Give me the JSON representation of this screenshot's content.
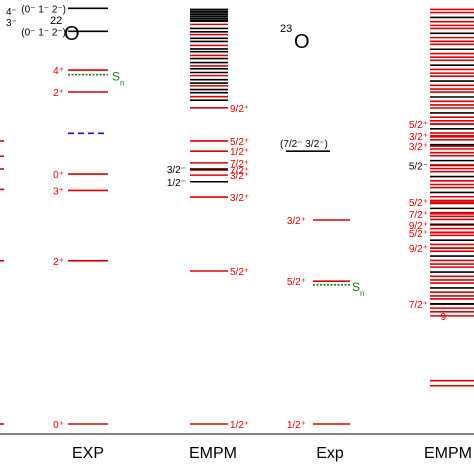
{
  "chart_data": {
    "type": "level-scheme",
    "colors": {
      "positive_parity": "#e00000",
      "negative_parity": "#000000",
      "threshold": "#1a7a1a",
      "neutron_threshold_label": "#1a7a1a",
      "dashed_marker": "#1010d0",
      "axis": "#000000"
    },
    "energy_axis": {
      "ylim": [
        0.0,
        8.0
      ],
      "units": "MeV"
    },
    "columns": [
      {
        "id": "o22-exp",
        "label": "EXP",
        "nucleus": "22O",
        "levels": [
          {
            "E": 0.0,
            "jp": "0⁺",
            "color": "red"
          },
          {
            "E": 3.2,
            "jp": "2⁺",
            "color": "red"
          },
          {
            "E": 4.58,
            "jp": "3⁺",
            "color": "red"
          },
          {
            "E": 4.9,
            "jp": "0⁺",
            "color": "red"
          },
          {
            "E": 6.51,
            "jp": "2⁺",
            "color": "red"
          },
          {
            "E": 6.94,
            "jp": "4⁺",
            "color": "red"
          },
          {
            "E": 7.7,
            "jp": "(0⁻ 1⁻ 2⁻)",
            "color": "black"
          },
          {
            "E": 8.15,
            "jp": "(0⁻ 1⁻ 2⁻)",
            "color": "black"
          }
        ],
        "threshold": {
          "E": 6.85,
          "label": "S",
          "sub": "n"
        },
        "dashed_level": {
          "E": 5.7
        }
      },
      {
        "id": "o22-empm",
        "label": "EMPM",
        "nucleus": "",
        "levels_labeled": [
          {
            "E": 0.0,
            "jp": "1/2⁺",
            "color": "red"
          },
          {
            "E": 3.0,
            "jp": "5/2⁺",
            "color": "red"
          },
          {
            "E": 4.45,
            "jp": "3/2⁺",
            "color": "red"
          },
          {
            "E": 4.88,
            "jp": "3/2⁺",
            "color": "red"
          },
          {
            "E": 4.98,
            "jp": "7/2⁺",
            "color": "red"
          },
          {
            "E": 5.12,
            "jp": "7/2⁺",
            "color": "red"
          },
          {
            "E": 5.35,
            "jp": "1/2⁺",
            "color": "red"
          },
          {
            "E": 5.55,
            "jp": "5/2⁺",
            "color": "red"
          },
          {
            "E": 6.2,
            "jp": "9/2⁺",
            "color": "red"
          },
          {
            "E": 4.75,
            "jp": "1/2⁻",
            "color": "black"
          },
          {
            "E": 5.0,
            "jp": "3/2⁻",
            "color": "black"
          }
        ]
      },
      {
        "id": "o23-exp",
        "label": "Exp",
        "nucleus": "23O",
        "levels": [
          {
            "E": 0.0,
            "jp": "1/2⁺",
            "color": "red"
          },
          {
            "E": 2.8,
            "jp": "5/2⁺",
            "color": "red"
          },
          {
            "E": 4.0,
            "jp": "3/2⁺",
            "color": "red"
          },
          {
            "E": 5.35,
            "jp": "(7/2⁻ 3/2⁻)",
            "color": "black"
          }
        ],
        "threshold": {
          "E": 2.73,
          "label": "S",
          "sub": "n"
        }
      },
      {
        "id": "o23-empm",
        "label": "EMPM",
        "nucleus": "",
        "levels_labeled": [
          {
            "E": 2.35,
            "jp": "7/2⁺",
            "color": "red"
          },
          {
            "E": 3.45,
            "jp": "9/2⁺",
            "color": "red"
          },
          {
            "E": 3.75,
            "jp": "5/2⁺",
            "color": "red"
          },
          {
            "E": 3.9,
            "jp": "9/2⁺",
            "color": "red"
          },
          {
            "E": 4.12,
            "jp": "7/2⁺",
            "color": "red"
          },
          {
            "E": 4.35,
            "jp": "5/2⁺",
            "color": "red"
          },
          {
            "E": 5.07,
            "jp": "5/2⁻",
            "color": "black"
          },
          {
            "E": 5.45,
            "jp": "3/2⁺",
            "color": "red"
          },
          {
            "E": 5.65,
            "jp": "3/2⁺",
            "color": "red"
          },
          {
            "E": 5.88,
            "jp": "5/2⁺",
            "color": "red"
          }
        ],
        "partial_label": {
          "E": 2.12,
          "jp": "9"
        }
      }
    ],
    "left_edge_partial_labels": [
      {
        "E": 8.1,
        "text": "4⁻",
        "color": "black"
      },
      {
        "E": 7.88,
        "text": "3⁻",
        "color": "black"
      }
    ]
  }
}
